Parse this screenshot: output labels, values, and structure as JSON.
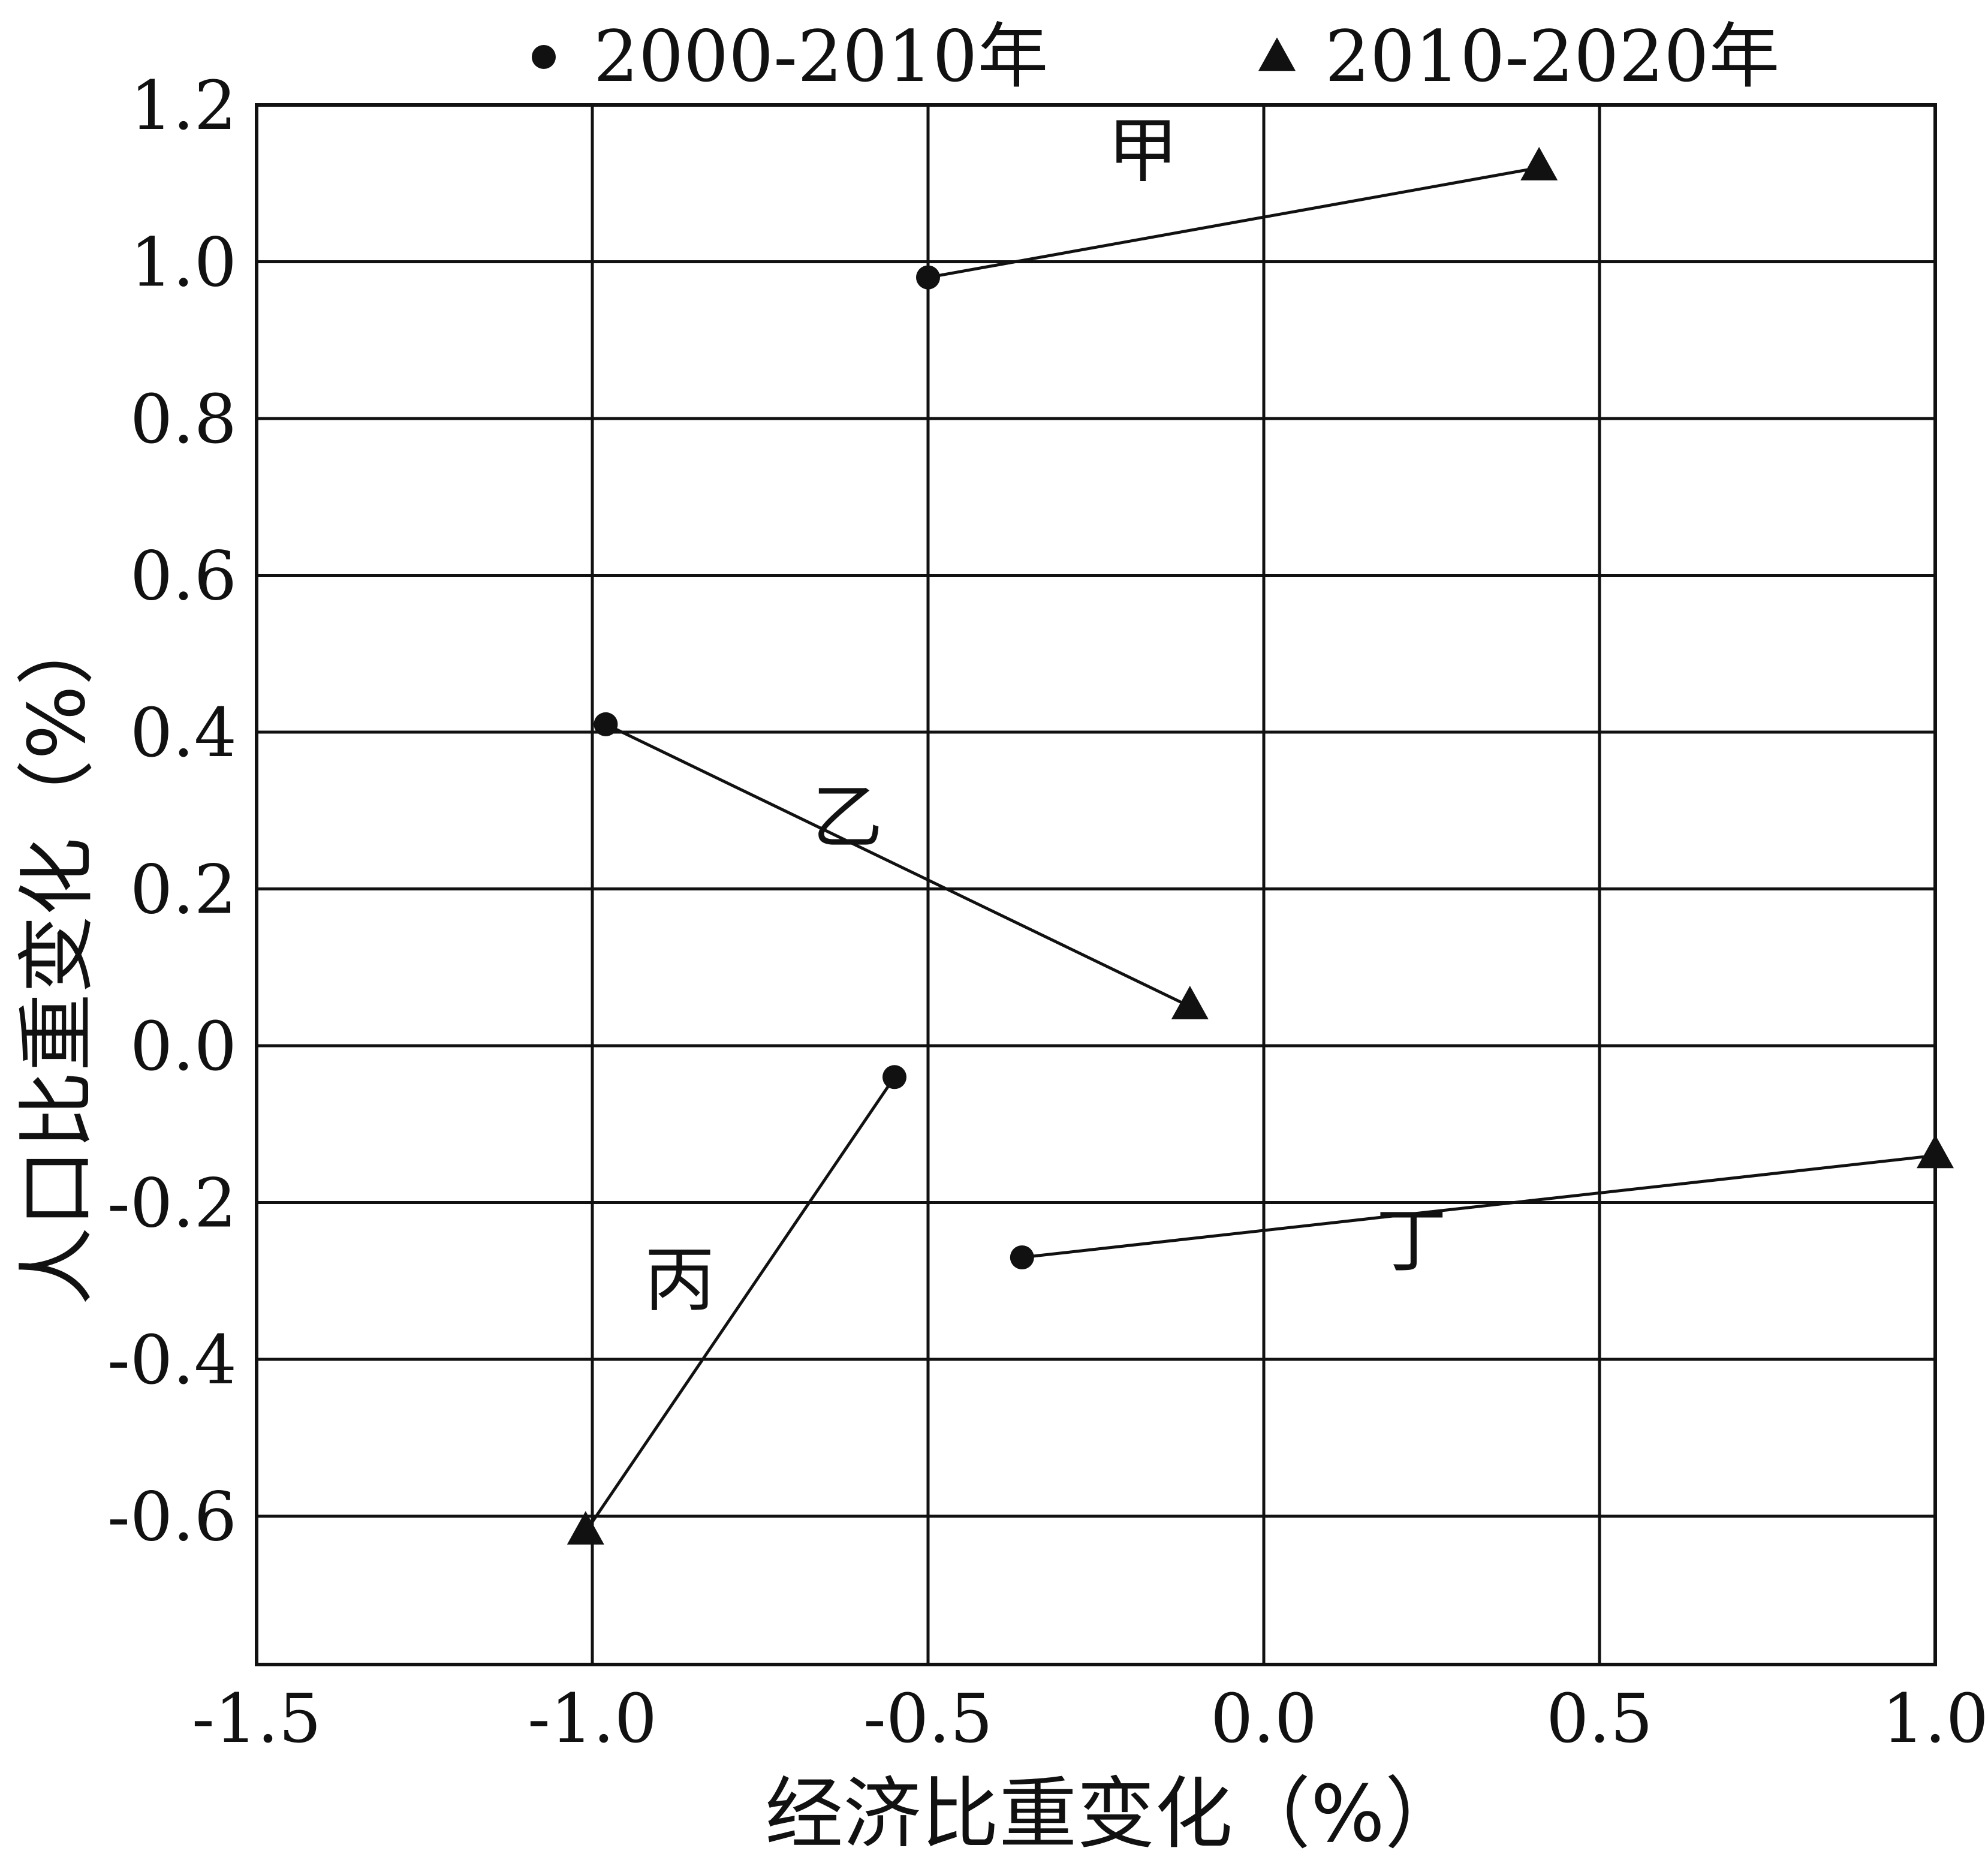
{
  "chart_data": {
    "type": "scatter",
    "xlabel": "经济比重变化（%）",
    "ylabel": "人口比重变化（%）",
    "xlim": [
      -1.5,
      1.0
    ],
    "ylim": [
      -0.78,
      1.2
    ],
    "xticks": [
      -1.5,
      -1.0,
      -0.5,
      0.0,
      0.5,
      1.0
    ],
    "yticks": [
      1.2,
      1.0,
      0.8,
      0.6,
      0.4,
      0.2,
      0.0,
      -0.2,
      -0.4,
      -0.6
    ],
    "x_tick_labels": [
      "-1.5",
      "-1.0",
      "-0.5",
      "0.0",
      "0.5",
      "1.0"
    ],
    "y_tick_labels": [
      "1.2",
      "1.0",
      "0.8",
      "0.6",
      "0.4",
      "0.2",
      "0.0",
      "-0.2",
      "-0.4",
      "-0.6"
    ],
    "grid": true,
    "legend_position": "top",
    "series": [
      {
        "name": "2000-2010年",
        "marker": "circle"
      },
      {
        "name": "2010-2020年",
        "marker": "triangle"
      }
    ],
    "regions": [
      {
        "label": "甲",
        "start": {
          "x": -0.5,
          "y": 0.98
        },
        "end": {
          "x": 0.41,
          "y": 1.12
        }
      },
      {
        "label": "乙",
        "start": {
          "x": -0.98,
          "y": 0.41
        },
        "end": {
          "x": -0.11,
          "y": 0.05
        }
      },
      {
        "label": "丙",
        "start": {
          "x": -0.55,
          "y": -0.04
        },
        "end": {
          "x": -1.01,
          "y": -0.62
        }
      },
      {
        "label": "丁",
        "start": {
          "x": -0.36,
          "y": -0.27
        },
        "end": {
          "x": 1.0,
          "y": -0.14
        }
      }
    ]
  }
}
